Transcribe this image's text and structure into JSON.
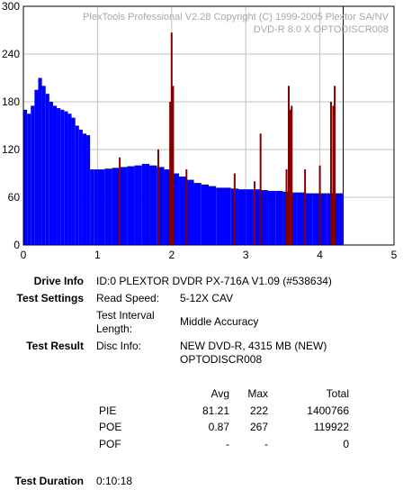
{
  "chart_data": {
    "type": "bar",
    "title_line1": "PlexTools Professional V2.28 Copyright (C) 1999-2005 Plextor SA/NV",
    "title_line2": "DVD-R   8.0 X   OPTODISCR008",
    "xlim": [
      0,
      5
    ],
    "ylim": [
      0,
      300
    ],
    "x_ticks": [
      "0",
      "1",
      "2",
      "3",
      "4",
      "5"
    ],
    "y_ticks": [
      "0",
      "60",
      "120",
      "180",
      "240",
      "300"
    ],
    "grid": true,
    "end_marker_x": 4.315,
    "colors": {
      "pie": "#0000ff",
      "poe": "#800000",
      "grid": "#c0c0c0",
      "marker": "#000000"
    },
    "pie_series": {
      "name": "PIE",
      "x": [
        0,
        0.05,
        0.1,
        0.15,
        0.2,
        0.25,
        0.3,
        0.35,
        0.4,
        0.45,
        0.5,
        0.55,
        0.6,
        0.65,
        0.7,
        0.75,
        0.8,
        0.85,
        0.9,
        0.95,
        1.0,
        1.1,
        1.2,
        1.3,
        1.4,
        1.5,
        1.6,
        1.7,
        1.8,
        1.9,
        2.0,
        2.1,
        2.2,
        2.3,
        2.4,
        2.5,
        2.6,
        2.7,
        2.8,
        2.9,
        3.0,
        3.1,
        3.2,
        3.3,
        3.4,
        3.5,
        3.6,
        3.7,
        3.8,
        3.9,
        4.0,
        4.1,
        4.2,
        4.3
      ],
      "values": [
        170,
        165,
        175,
        195,
        210,
        200,
        190,
        180,
        175,
        172,
        170,
        168,
        165,
        160,
        150,
        145,
        140,
        138,
        95,
        95,
        95,
        96,
        97,
        98,
        99,
        100,
        102,
        100,
        98,
        95,
        90,
        86,
        82,
        78,
        76,
        74,
        72,
        72,
        71,
        70,
        70,
        70,
        69,
        68,
        68,
        67,
        66,
        66,
        65,
        65,
        65,
        65,
        65,
        65
      ]
    },
    "poe_series": {
      "name": "POE",
      "x": [
        1.3,
        1.82,
        1.98,
        2.0,
        2.02,
        2.2,
        2.85,
        3.12,
        3.2,
        3.55,
        3.58,
        3.6,
        3.62,
        3.8,
        4.0,
        4.15,
        4.18,
        4.2
      ],
      "values": [
        110,
        120,
        180,
        267,
        200,
        95,
        90,
        80,
        140,
        95,
        200,
        170,
        175,
        95,
        100,
        180,
        175,
        200
      ]
    }
  },
  "info": {
    "drive_label": "Drive Info",
    "drive_value": "ID:0 PLEXTOR DVDR PX-716A V1.09 (#538634)",
    "settings_label": "Test Settings",
    "read_speed_label": "Read Speed:",
    "read_speed_value": "5-12X CAV",
    "interval_label_1": "Test Interval",
    "interval_label_2": "Length:",
    "interval_value": "Middle Accuracy",
    "result_label": "Test Result",
    "disc_label": "Disc Info:",
    "disc_value_1": "NEW DVD-R, 4315 MB (NEW)",
    "disc_value_2": "OPTODISCR008",
    "duration_label": "Test Duration",
    "duration_value": "0:10:18"
  },
  "stats": {
    "headers": {
      "avg": "Avg",
      "max": "Max",
      "total": "Total"
    },
    "rows": [
      {
        "name": "PIE",
        "avg": "81.21",
        "max": "222",
        "total": "1400766"
      },
      {
        "name": "POE",
        "avg": "0.87",
        "max": "267",
        "total": "119922"
      },
      {
        "name": "POF",
        "avg": "-",
        "max": "-",
        "total": "0"
      }
    ]
  }
}
